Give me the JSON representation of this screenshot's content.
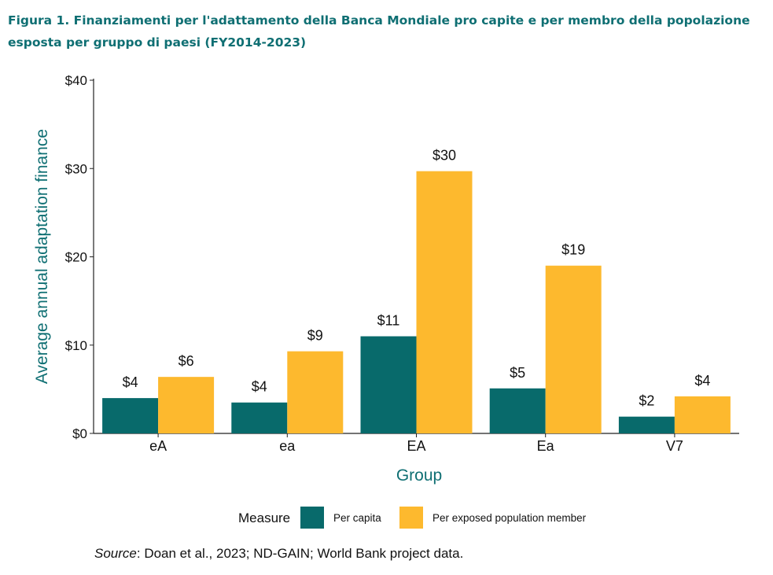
{
  "figure": {
    "title": "Figura 1. Finanziamenti per l'adattamento della Banca Mondiale pro capite e per membro della popolazione esposta per gruppo di paesi (FY2014-2023)",
    "source_label": "Source",
    "source_text": ": Doan et al., 2023; ND-GAIN; World Bank project data."
  },
  "chart_data": {
    "type": "bar",
    "categories": [
      "eA",
      "ea",
      "EA",
      "Ea",
      "V7"
    ],
    "series": [
      {
        "name": "Per capita",
        "color": "#086a6b",
        "values": [
          4.0,
          3.5,
          11.0,
          5.1,
          1.9
        ],
        "labels": [
          "$4",
          "$4",
          "$11",
          "$5",
          "$2"
        ]
      },
      {
        "name": "Per exposed population member",
        "color": "#fdb92e",
        "values": [
          6.4,
          9.3,
          29.7,
          19.0,
          4.2
        ],
        "labels": [
          "$6",
          "$9",
          "$30",
          "$19",
          "$4"
        ]
      }
    ],
    "xlabel": "Group",
    "ylabel": "Average annual adaptation finance",
    "ylim": [
      0,
      40
    ],
    "yticks": [
      0,
      10,
      20,
      30,
      40
    ],
    "ytick_labels": [
      "$0",
      "$10",
      "$20",
      "$30",
      "$40"
    ],
    "legend_title": "Measure",
    "legend_position": "bottom",
    "axis_color": "#0f6f73"
  }
}
